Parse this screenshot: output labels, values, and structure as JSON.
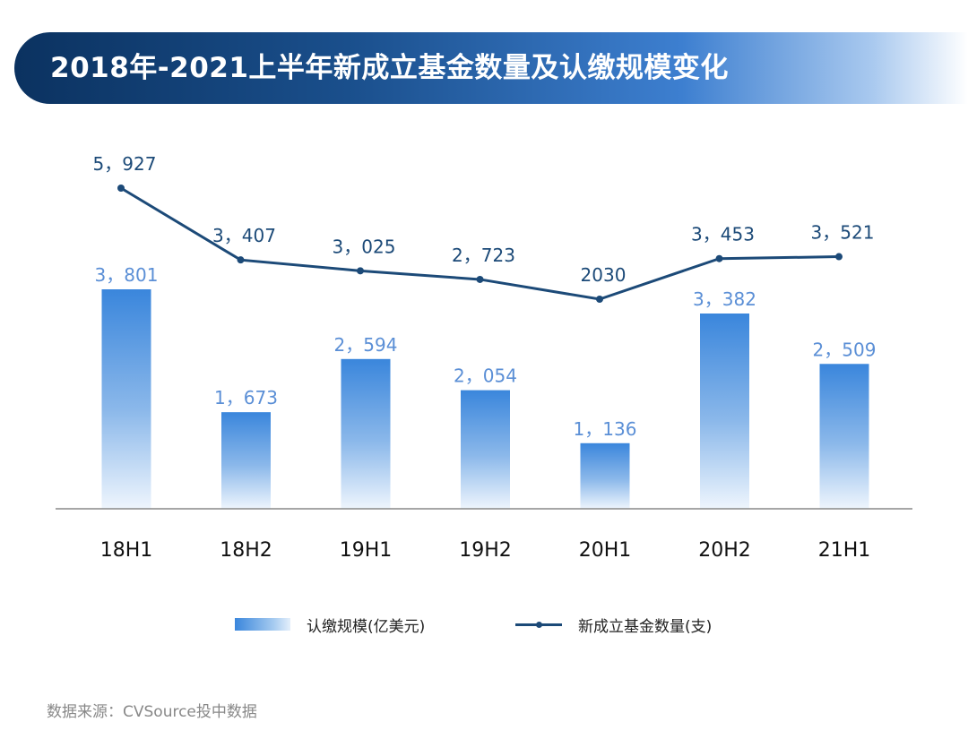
{
  "title": "2018年-2021上半年新成立基金数量及认缴规模变化",
  "chart_data": {
    "type": "bar",
    "categories": [
      "18H1",
      "18H2",
      "19H1",
      "19H2",
      "20H1",
      "20H2",
      "21H1"
    ],
    "series": [
      {
        "name": "认缴规模(亿美元)",
        "type": "bar",
        "values": [
          3801,
          1673,
          2594,
          2054,
          1136,
          3382,
          2509
        ],
        "labels": [
          "3，801",
          "1，673",
          "2，594",
          "2，054",
          "1，136",
          "3，382",
          "2，509"
        ],
        "color": "#3a86dc"
      },
      {
        "name": "新成立基金数量(支)",
        "type": "line",
        "values": [
          5927,
          3407,
          3025,
          2723,
          2030,
          3453,
          3521
        ],
        "labels": [
          "5，927",
          "3，407",
          "3，025",
          "2，723",
          "2030",
          "3，453",
          "3，521"
        ],
        "color": "#1c4a78"
      }
    ],
    "legend_position": "bottom",
    "grid": false
  },
  "legend": {
    "bar_label": "认缴规模(亿美元)",
    "line_label": "新成立基金数量(支)"
  },
  "source": "数据来源：CVSource投中数据",
  "colors": {
    "bar": "#3a86dc",
    "bar_label": "#5b8fd6",
    "line": "#1c4a78",
    "title_bg": "#0b3260"
  }
}
